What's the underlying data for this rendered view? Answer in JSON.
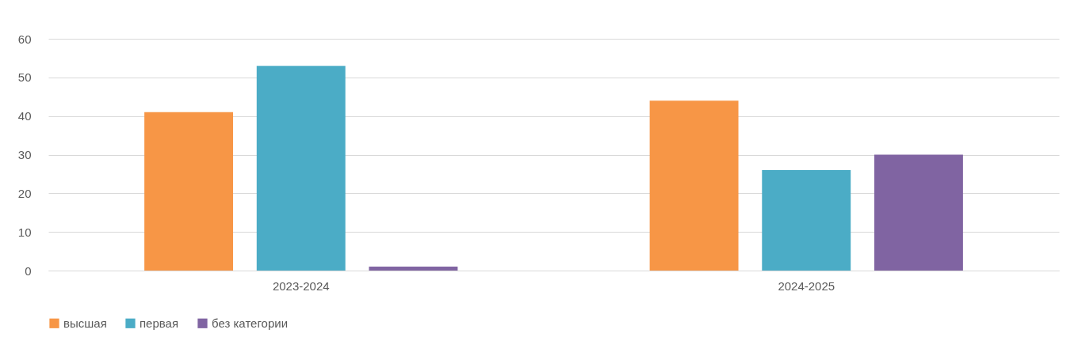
{
  "chart_data": {
    "type": "bar",
    "categories": [
      "2023-2024",
      "2024-2025"
    ],
    "series": [
      {
        "name": "высшая",
        "color": "#f79646",
        "values": [
          41,
          44
        ]
      },
      {
        "name": "первая",
        "color": "#4bacc6",
        "values": [
          53,
          26
        ]
      },
      {
        "name": "без категории",
        "color": "#8064a2",
        "values": [
          1,
          30
        ]
      }
    ],
    "ylim": [
      0,
      60
    ],
    "yticks": [
      0,
      10,
      20,
      30,
      40,
      50,
      60
    ],
    "grid": "y",
    "legend": "bottom"
  }
}
